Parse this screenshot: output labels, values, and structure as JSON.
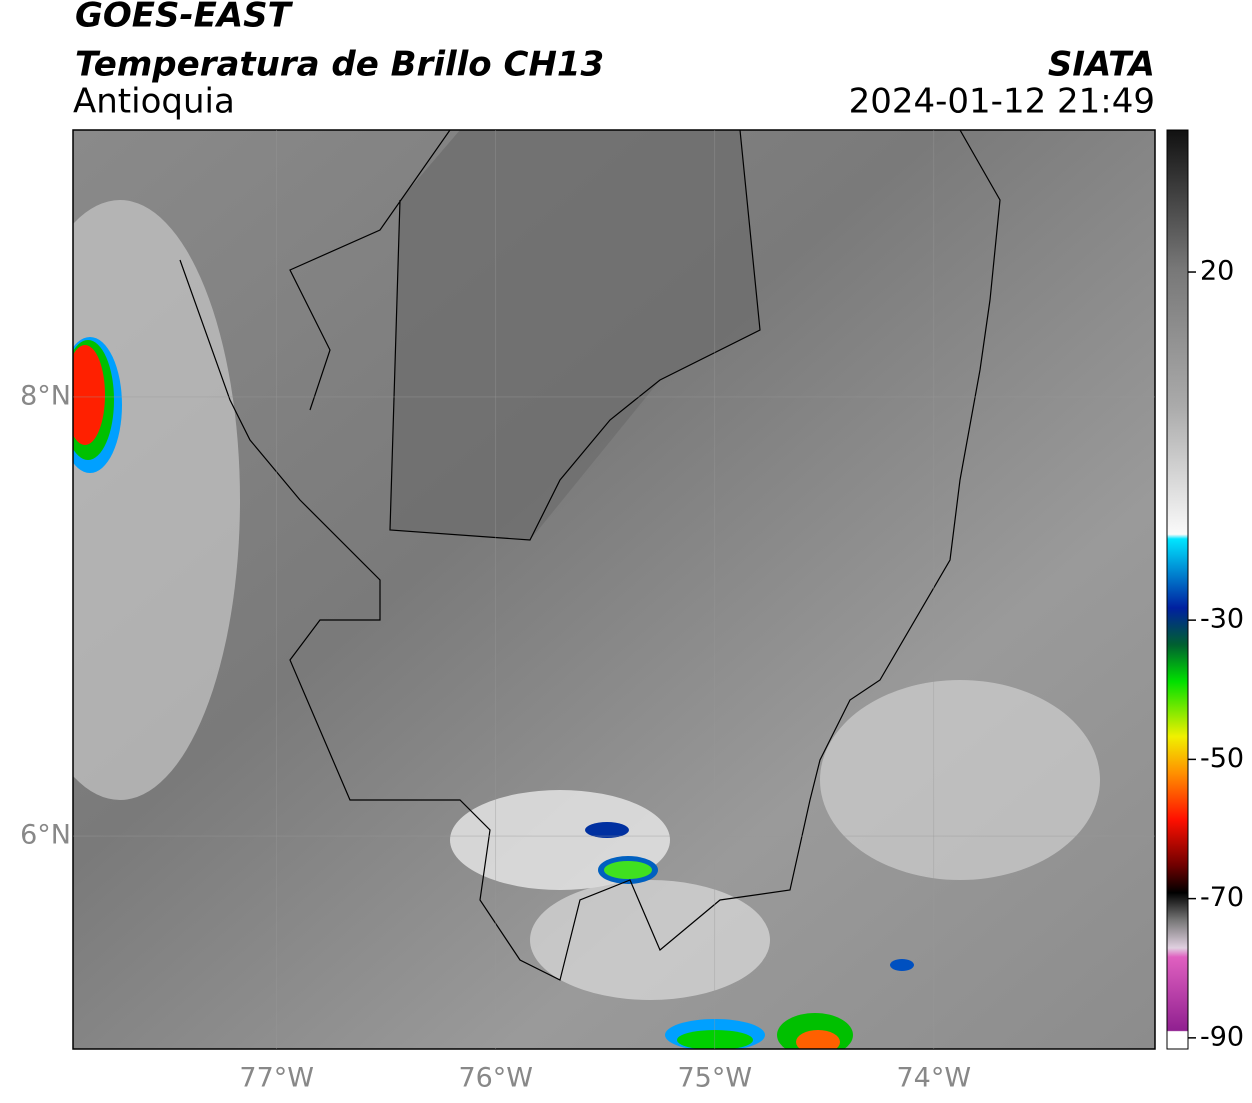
{
  "header": {
    "title": "GOES-EAST",
    "subtitle": "Temperatura de Brillo CH13",
    "region": "Antioquia",
    "agency": "SIATA",
    "datetime": "2024-01-12 21:49"
  },
  "map": {
    "lonlim": [
      -77.93,
      -72.99
    ],
    "latlim": [
      5.03,
      9.216
    ],
    "lon_ticks": [
      {
        "value": -77,
        "label": "77°W"
      },
      {
        "value": -76,
        "label": "76°W"
      },
      {
        "value": -75,
        "label": "75°W"
      },
      {
        "value": -74,
        "label": "74°W"
      }
    ],
    "lat_ticks": [
      {
        "value": 8,
        "label": "8°N"
      },
      {
        "value": 6,
        "label": "6°N"
      }
    ]
  },
  "colorbar": {
    "lim": [
      -91.6,
      40.4
    ],
    "ticks": [
      20,
      -30,
      -50,
      -70,
      -90
    ]
  }
}
